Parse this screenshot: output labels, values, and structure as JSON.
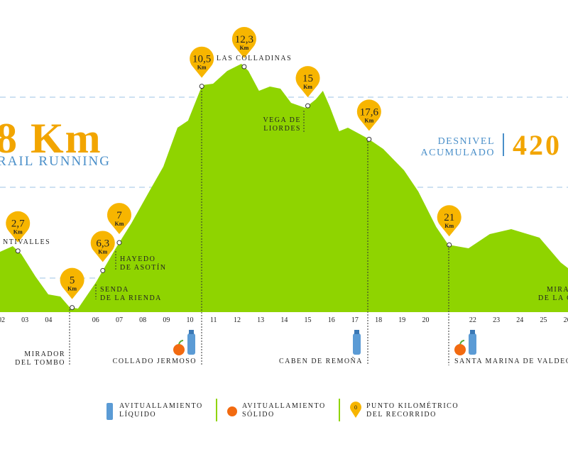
{
  "chart_data": {
    "type": "area",
    "headline": "8 Km",
    "subtitle": "RAIL RUNNING",
    "elevation_label": [
      "DESNIVEL",
      "ACUMULADO"
    ],
    "elevation_value": "420",
    "color": "#8fd400",
    "x": [
      1.94,
      2.48,
      2.84,
      3.45,
      3.99,
      4.5,
      4.89,
      5.25,
      6.01,
      6.85,
      7.51,
      8.27,
      8.87,
      9.47,
      9.92,
      10.52,
      10.98,
      11.58,
      12.18,
      12.48,
      12.93,
      13.39,
      13.84,
      14.29,
      14.89,
      15.34,
      15.64,
      15.93,
      16.33,
      16.7,
      17.54,
      18.2,
      19.08,
      19.69,
      20.45,
      20.96,
      21.82,
      22.72,
      23.63,
      24.83,
      25.73,
      26.04
    ],
    "values": [
      85,
      93,
      82,
      50,
      25,
      22,
      7,
      5,
      42,
      90,
      125,
      170,
      205,
      260,
      270,
      320,
      322,
      340,
      350,
      340,
      312,
      318,
      315,
      295,
      288,
      300,
      312,
      290,
      255,
      260,
      245,
      230,
      200,
      170,
      120,
      95,
      90,
      110,
      117,
      105,
      70,
      62
    ],
    "xlim": [
      1.94,
      26.04
    ],
    "ylim": [
      0,
      360
    ],
    "xticks": [
      {
        "value": 2,
        "label": "02"
      },
      {
        "value": 3,
        "label": "03"
      },
      {
        "value": 4,
        "label": "04"
      },
      {
        "value": 6,
        "label": "06"
      },
      {
        "value": 7,
        "label": "07"
      },
      {
        "value": 8,
        "label": "08"
      },
      {
        "value": 9,
        "label": "09"
      },
      10,
      11,
      12,
      13,
      14,
      15,
      16,
      17,
      18,
      19,
      20,
      22,
      23,
      24,
      25,
      26
    ],
    "markers": [
      {
        "km": 2.7,
        "label": "2,7",
        "unit": "Km"
      },
      {
        "km": 5,
        "label": "5",
        "unit": "Km"
      },
      {
        "km": 6.3,
        "label": "6,3",
        "unit": "Km"
      },
      {
        "km": 7,
        "label": "7",
        "unit": "Km"
      },
      {
        "km": 10.5,
        "label": "10,5",
        "unit": "Km"
      },
      {
        "km": 12.3,
        "label": "12,3",
        "unit": "Km"
      },
      {
        "km": 15,
        "label": "15",
        "unit": "Km"
      },
      {
        "km": 17.6,
        "label": "17,6",
        "unit": "Km"
      },
      {
        "km": 21,
        "label": "21",
        "unit": "Km"
      }
    ],
    "places": [
      [
        "NTIVALLES"
      ],
      [
        "MIRADOR",
        "DEL TOMBO"
      ],
      [
        "SENDA",
        "DE LA RIENDA"
      ],
      [
        "HAYEDO",
        "DE ASOTÍN"
      ],
      [
        "COLLADO JERMOSO"
      ],
      [
        "LAS COLLADINAS"
      ],
      [
        "VEGA DE",
        "LIORDES"
      ],
      [
        "CABEN DE REMOÑA"
      ],
      [
        "SANTA MARINA DE VALDEÓ"
      ],
      [
        "MIRA",
        "DE LA C"
      ]
    ],
    "legend": [
      [
        "AVITUALLAMIENTO",
        "LÍQUIDO"
      ],
      [
        "AVITUALLAMIENTO",
        "SÓLIDO"
      ],
      [
        "PUNTO KILOMÉTRICO",
        "DEL RECORRIDO"
      ]
    ],
    "legend_pin": "0"
  }
}
